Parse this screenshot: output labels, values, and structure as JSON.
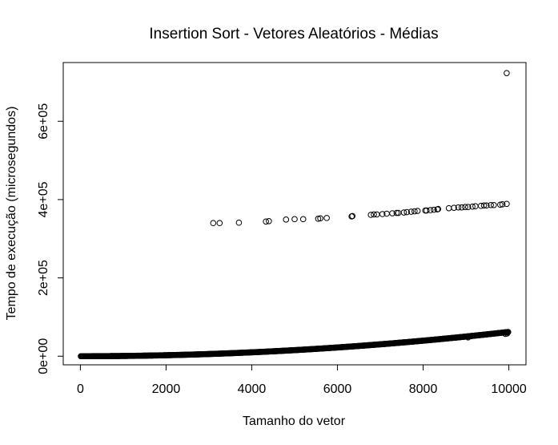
{
  "chart_data": {
    "type": "scatter",
    "title": "Insertion Sort - Vetores Aleatórios - Médias",
    "xlabel": "Tamanho do vetor",
    "ylabel": "Tempo de execução (microsegundos)",
    "xlim": [
      -400,
      10400
    ],
    "ylim": [
      -22000,
      750000
    ],
    "x_ticks": [
      0,
      2000,
      4000,
      6000,
      8000,
      10000
    ],
    "x_tick_labels": [
      "0",
      "2000",
      "4000",
      "6000",
      "8000",
      "10000"
    ],
    "y_ticks": [
      0,
      200000,
      400000,
      600000
    ],
    "y_tick_labels": [
      "0e+00",
      "2e+05",
      "4e+05",
      "6e+05"
    ],
    "grid": false,
    "legend": "none",
    "series": [
      {
        "points": [
          [
            3100,
            340000
          ],
          [
            3250,
            340000
          ],
          [
            3700,
            341000
          ],
          [
            4330,
            344000
          ],
          [
            4400,
            345000
          ],
          [
            4800,
            349000
          ],
          [
            5000,
            350000
          ],
          [
            5200,
            350000
          ],
          [
            5550,
            351000
          ],
          [
            5600,
            352000
          ],
          [
            5750,
            353000
          ],
          [
            6330,
            357000
          ],
          [
            6350,
            358000
          ],
          [
            6780,
            361000
          ],
          [
            6850,
            362000
          ],
          [
            6920,
            362000
          ],
          [
            7050,
            363000
          ],
          [
            7150,
            364000
          ],
          [
            7280,
            365000
          ],
          [
            7380,
            366000
          ],
          [
            7420,
            366000
          ],
          [
            7550,
            367000
          ],
          [
            7620,
            368000
          ],
          [
            7720,
            369000
          ],
          [
            7800,
            370000
          ],
          [
            7870,
            371000
          ],
          [
            8050,
            372000
          ],
          [
            8080,
            372000
          ],
          [
            8170,
            373000
          ],
          [
            8250,
            374000
          ],
          [
            8330,
            375000
          ],
          [
            8350,
            376000
          ],
          [
            8600,
            378000
          ],
          [
            8720,
            379000
          ],
          [
            8820,
            380000
          ],
          [
            8900,
            380000
          ],
          [
            8980,
            381000
          ],
          [
            9050,
            381000
          ],
          [
            9150,
            382000
          ],
          [
            9220,
            383000
          ],
          [
            9350,
            384000
          ],
          [
            9420,
            385000
          ],
          [
            9480,
            385000
          ],
          [
            9580,
            386000
          ],
          [
            9650,
            386000
          ],
          [
            9800,
            387000
          ],
          [
            9850,
            388000
          ],
          [
            9950,
            389000
          ],
          [
            9950,
            723000
          ],
          [
            8250,
            42000
          ],
          [
            9050,
            48000
          ],
          [
            9920,
            57000
          ],
          [
            9960,
            58000
          ]
        ],
        "curve": {
          "formula": "y = 6.2e-4 * x^2",
          "x_start": 10,
          "x_end": 9990,
          "x_step": 15
        }
      }
    ]
  }
}
